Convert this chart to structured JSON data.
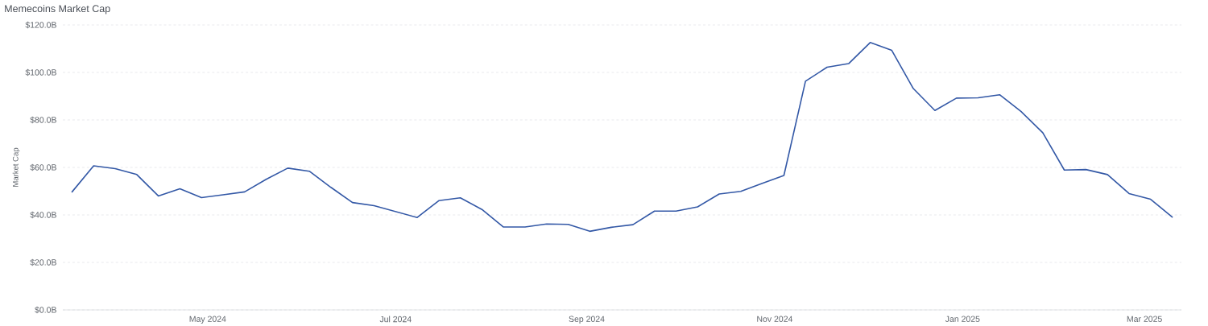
{
  "chart_data": {
    "type": "line",
    "title": "Memecoins Market Cap",
    "ylabel": "Market Cap",
    "x": [
      "2024-03-18",
      "2024-03-25",
      "2024-04-01",
      "2024-04-08",
      "2024-04-15",
      "2024-04-22",
      "2024-04-29",
      "2024-05-06",
      "2024-05-13",
      "2024-05-20",
      "2024-05-27",
      "2024-06-03",
      "2024-06-10",
      "2024-06-17",
      "2024-06-24",
      "2024-07-01",
      "2024-07-08",
      "2024-07-15",
      "2024-07-22",
      "2024-07-29",
      "2024-08-05",
      "2024-08-12",
      "2024-08-19",
      "2024-08-26",
      "2024-09-02",
      "2024-09-09",
      "2024-09-16",
      "2024-09-23",
      "2024-09-30",
      "2024-10-07",
      "2024-10-14",
      "2024-10-21",
      "2024-10-28",
      "2024-11-04",
      "2024-11-11",
      "2024-11-18",
      "2024-11-25",
      "2024-12-02",
      "2024-12-09",
      "2024-12-16",
      "2024-12-23",
      "2024-12-30",
      "2025-01-06",
      "2025-01-13",
      "2025-01-20",
      "2025-01-27",
      "2025-02-03",
      "2025-02-10",
      "2025-02-17",
      "2025-02-24",
      "2025-03-03",
      "2025-03-10"
    ],
    "series": [
      {
        "color": "#3358a6",
        "values": [
          49.7,
          60.7,
          59.5,
          57.0,
          48.0,
          51.0,
          47.3,
          48.5,
          49.7,
          55.0,
          59.7,
          58.4,
          51.6,
          45.2,
          43.9,
          41.4,
          38.9,
          46.0,
          47.2,
          42.3,
          34.9,
          34.9,
          36.2,
          36.0,
          33.1,
          34.8,
          35.9,
          41.6,
          41.6,
          43.4,
          48.8,
          49.9,
          53.3,
          56.6,
          96.3,
          102.2,
          103.7,
          112.6,
          109.3,
          93.2,
          84.0,
          89.2,
          89.3,
          90.6,
          83.5,
          74.6,
          58.9,
          59.1,
          57.0,
          49.0,
          46.6,
          39.1
        ]
      }
    ],
    "xlim": [
      "2024-03-15",
      "2025-03-13"
    ],
    "ylim": [
      0,
      120
    ],
    "xticks": [
      {
        "value": "2024-05-01",
        "label": "May 2024"
      },
      {
        "value": "2024-07-01",
        "label": "Jul 2024"
      },
      {
        "value": "2024-09-01",
        "label": "Sep 2024"
      },
      {
        "value": "2024-11-01",
        "label": "Nov 2024"
      },
      {
        "value": "2025-01-01",
        "label": "Jan 2025"
      },
      {
        "value": "2025-03-01",
        "label": "Mar 2025"
      }
    ],
    "yticks": [
      {
        "value": 0,
        "label": "$0.0B"
      },
      {
        "value": 20,
        "label": "$20.0B"
      },
      {
        "value": 40,
        "label": "$40.0B"
      },
      {
        "value": 60,
        "label": "$60.0B"
      },
      {
        "value": 80,
        "label": "$80.0B"
      },
      {
        "value": 100,
        "label": "$100.0B"
      },
      {
        "value": 120,
        "label": "$120.0B"
      }
    ],
    "grid": "y",
    "marker": "none",
    "line_style": "solid"
  }
}
